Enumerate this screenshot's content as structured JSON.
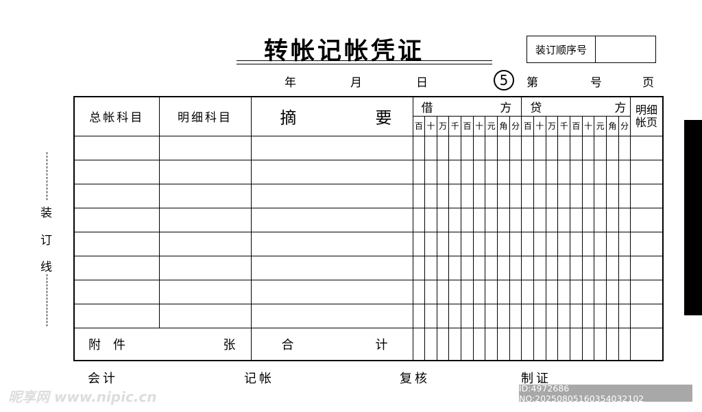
{
  "title": "转帐记帐凭证",
  "seq_label": "装订顺序号",
  "seq_value": "",
  "date": {
    "year": "年",
    "month": "月",
    "day": "日"
  },
  "copy_number": "5",
  "page": {
    "di": "第",
    "hao": "号",
    "ye": "页"
  },
  "headers": {
    "general_account": "总帐科目",
    "detail_account": "明细科目",
    "summary_left": "摘",
    "summary_right": "要",
    "debit_left": "借",
    "debit_right": "方",
    "credit_left": "贷",
    "credit_right": "方",
    "ledger_page_1": "明细",
    "ledger_page_2": "帐页"
  },
  "digit_units": [
    "百",
    "十",
    "万",
    "千",
    "百",
    "十",
    "元",
    "角",
    "分"
  ],
  "data_rows": 8,
  "footer": {
    "attach": "附　件",
    "sheets": "张",
    "total_left": "合",
    "total_right": "计"
  },
  "binding": [
    "装",
    "订",
    "线"
  ],
  "signatures": [
    "会计",
    "记帐",
    "复核",
    "制证"
  ],
  "watermark": "昵享网 www.nipic.cn",
  "image_id": "ID:4972686 NO:20250805160354032102"
}
